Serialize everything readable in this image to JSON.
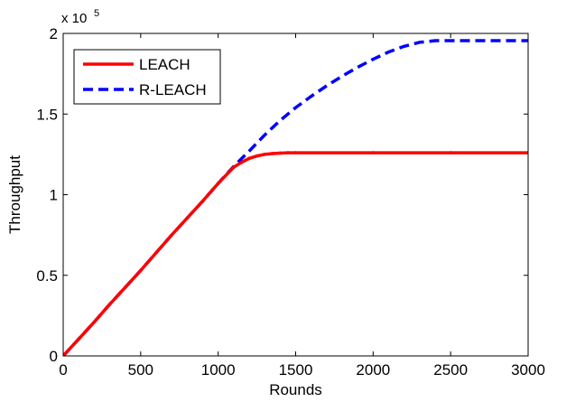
{
  "chart_data": {
    "type": "line",
    "title": "",
    "xlabel": "Rounds",
    "ylabel": "Throughput",
    "xlim": [
      0,
      3000
    ],
    "ylim": [
      0,
      200000
    ],
    "y_exponent_label": "x 10",
    "y_exponent_power": "5",
    "x_ticks": [
      0,
      500,
      1000,
      1500,
      2000,
      2500,
      3000
    ],
    "x_tick_labels": [
      "0",
      "500",
      "1000",
      "1500",
      "2000",
      "2500",
      "3000"
    ],
    "y_ticks": [
      0,
      50000,
      100000,
      150000,
      200000
    ],
    "y_tick_labels": [
      "0",
      "0.5",
      "1",
      "1.5",
      "2"
    ],
    "grid": false,
    "legend_position": "top-left",
    "series": [
      {
        "name": "LEACH",
        "color": "#ff0000",
        "style": "solid-with-dots",
        "x": [
          0,
          100,
          200,
          300,
          400,
          500,
          600,
          700,
          800,
          900,
          1000,
          1100,
          1150,
          1200,
          1250,
          1300,
          1350,
          1400,
          1450,
          1500,
          2000,
          2500,
          3000
        ],
        "y": [
          0,
          10500,
          21000,
          32000,
          42500,
          53000,
          64000,
          75000,
          85500,
          96000,
          107000,
          117000,
          120000,
          122500,
          124000,
          125000,
          125500,
          125800,
          126000,
          126000,
          126000,
          126000,
          126000
        ]
      },
      {
        "name": "R-LEACH",
        "color": "#0000ff",
        "style": "dashed",
        "x": [
          0,
          100,
          200,
          300,
          400,
          500,
          600,
          700,
          800,
          900,
          1000,
          1100,
          1200,
          1300,
          1400,
          1500,
          1600,
          1700,
          1800,
          1900,
          2000,
          2100,
          2200,
          2300,
          2400,
          2500,
          2600,
          2700,
          2800,
          2900,
          3000
        ],
        "y": [
          0,
          10500,
          21000,
          32000,
          42500,
          53000,
          64000,
          75000,
          85500,
          96000,
          107000,
          117500,
          127000,
          137000,
          146000,
          154000,
          161000,
          167500,
          173500,
          179000,
          184000,
          188500,
          192000,
          194500,
          195500,
          195500,
          195500,
          195500,
          195500,
          195500,
          195500
        ]
      }
    ]
  }
}
